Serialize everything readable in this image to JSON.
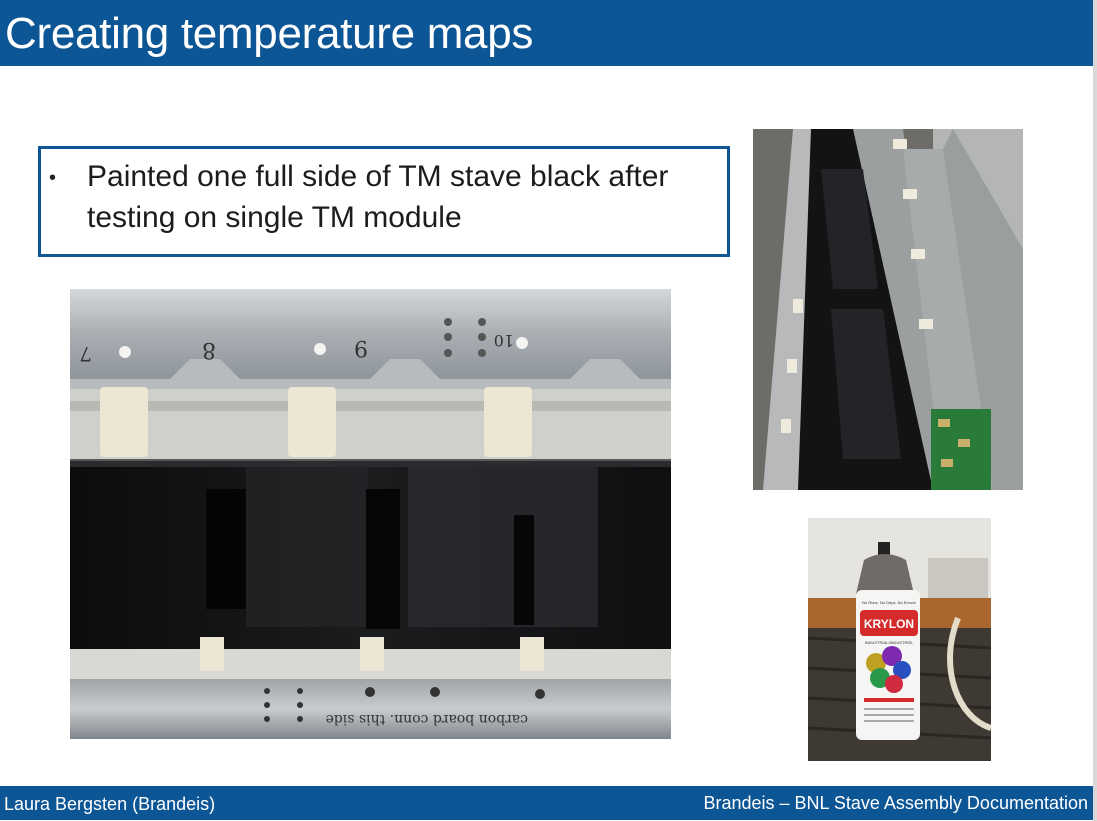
{
  "slide": {
    "title": "Creating temperature maps",
    "bullet_marker": "•",
    "bullet_text": "Painted one full side of TM stave black after testing on single TM module"
  },
  "photos": {
    "main": {
      "handwriting_1": "7",
      "handwriting_2": "8",
      "handwriting_3": "9",
      "handwriting_4": "10",
      "handwriting_bottom": "carbon board conn. this side"
    },
    "spray_can": {
      "brand": "KRYLON",
      "tagline": "No Runs. No Drips. No Errors!",
      "subtitle": "INDUSTRIAL/INDUSTRIEL"
    }
  },
  "footer": {
    "left": "Laura Bergsten (Brandeis)",
    "right": "Brandeis – BNL Stave Assembly Documentation"
  },
  "colors": {
    "brand_blue": "#0d5696",
    "paint_black": "#111111",
    "aluminum": "#aeb3b7",
    "krylon_red": "#d52a2a"
  }
}
